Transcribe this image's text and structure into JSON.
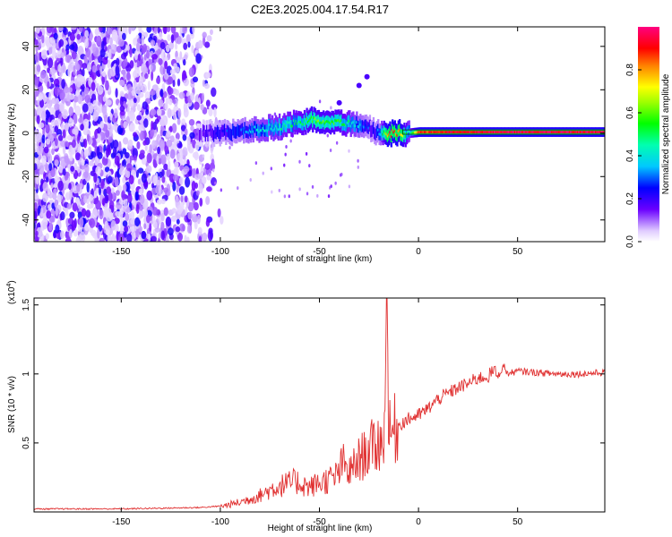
{
  "title": "C2E3.2025.004.17.54.R17",
  "chart_data": [
    {
      "type": "heatmap",
      "name": "spectrogram",
      "xlabel": "Height of straight line (km)",
      "ylabel": "Frequency (Hz)",
      "xlim": [
        -194,
        94
      ],
      "ylim": [
        -50,
        49
      ],
      "xticks": [
        -150,
        -100,
        -50,
        0,
        50
      ],
      "yticks": [
        -40,
        -20,
        0,
        20,
        40
      ],
      "colorbar": {
        "label": "Normalized spectral amplitude",
        "range": [
          0.0,
          1.0
        ],
        "ticks": [
          0.0,
          0.2,
          0.4,
          0.6,
          0.8
        ]
      },
      "ridge": {
        "description_points_height_km": [
          -110,
          -100,
          -90,
          -80,
          -70,
          -60,
          -55,
          -50,
          -40,
          -30,
          -25,
          -20,
          -15,
          -10,
          -5,
          0,
          10,
          20,
          40,
          60,
          80,
          94
        ],
        "frequency_hz": [
          0,
          0,
          1,
          2,
          3,
          5,
          6,
          6,
          5,
          4,
          2,
          0,
          0,
          0,
          0,
          0.5,
          0.5,
          0.5,
          0.5,
          0.5,
          0.5,
          0.5
        ],
        "amplitude": [
          0.15,
          0.25,
          0.3,
          0.4,
          0.45,
          0.5,
          0.6,
          0.6,
          0.55,
          0.35,
          0.25,
          0.3,
          0.9,
          0.8,
          0.4,
          0.85,
          0.9,
          0.92,
          0.95,
          0.95,
          0.95,
          0.95
        ]
      }
    },
    {
      "type": "line",
      "name": "snr",
      "xlabel": "Height of straight line (km)",
      "ylabel": "SNR (10 * v/v)",
      "yscale_label": "(x10",
      "yscale_exp": "4",
      "xlim": [
        -194,
        94
      ],
      "ylim": [
        0,
        1.55
      ],
      "xticks": [
        -150,
        -100,
        -50,
        0,
        50
      ],
      "yticks": [
        0.5,
        1.0,
        1.5
      ],
      "color": "#e03030",
      "x": [
        -194,
        -150,
        -110,
        -100,
        -90,
        -80,
        -72,
        -62,
        -55,
        -48,
        -42,
        -38,
        -35,
        -30,
        -25,
        -20,
        -17,
        -16,
        -15,
        -12,
        -8,
        -4,
        0,
        5,
        10,
        15,
        20,
        25,
        30,
        35,
        38,
        40,
        43,
        45,
        50,
        60,
        70,
        80,
        94
      ],
      "y": [
        0.02,
        0.02,
        0.03,
        0.04,
        0.07,
        0.12,
        0.18,
        0.22,
        0.18,
        0.22,
        0.25,
        0.35,
        0.28,
        0.38,
        0.45,
        0.5,
        0.55,
        1.55,
        0.55,
        0.6,
        0.65,
        0.68,
        0.7,
        0.75,
        0.82,
        0.86,
        0.9,
        0.93,
        0.97,
        0.98,
        1.03,
        0.98,
        1.06,
        1.0,
        1.02,
        1.01,
        1.0,
        1.0,
        1.01
      ]
    }
  ]
}
